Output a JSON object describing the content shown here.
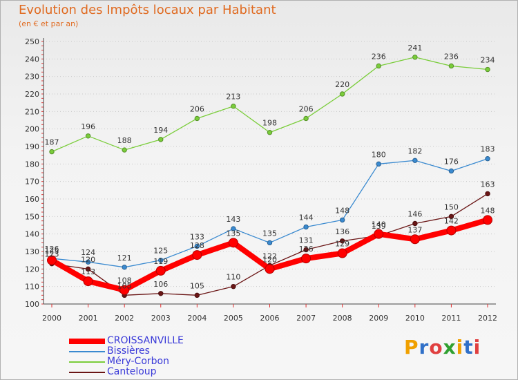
{
  "title": "Evolution des Impôts locaux par Habitant",
  "subtitle": "(en € et par an)",
  "logo": {
    "text": "Proxiti",
    "colors": [
      "#f0a000",
      "#3070c8",
      "#e04040",
      "#30a030"
    ]
  },
  "chart_data": {
    "type": "line",
    "title": "Evolution des Impôts locaux par Habitant",
    "subtitle": "(en € et par an)",
    "xlabel": "",
    "ylabel": "",
    "ylim": [
      100,
      250
    ],
    "yticks": [
      100,
      110,
      120,
      130,
      140,
      150,
      160,
      170,
      180,
      190,
      200,
      210,
      220,
      230,
      240,
      250
    ],
    "x": [
      "2000",
      "2001",
      "2002",
      "2003",
      "2004",
      "2005",
      "2006",
      "2007",
      "2008",
      "2009",
      "2010",
      "2011",
      "2012"
    ],
    "grid": "horizontal-dotted",
    "legend": "bottom-left",
    "series": [
      {
        "name": "CROISSANVILLE",
        "color": "#ff0000",
        "values": [
          125,
          113,
          108,
          119,
          128,
          135,
          120,
          126,
          129,
          140,
          137,
          142,
          148
        ]
      },
      {
        "name": "Bissières",
        "color": "#3a8ad0",
        "values": [
          126,
          124,
          121,
          125,
          133,
          143,
          135,
          144,
          148,
          180,
          182,
          176,
          183
        ]
      },
      {
        "name": "Méry-Corbon",
        "color": "#7acd3a",
        "values": [
          187,
          196,
          188,
          194,
          206,
          213,
          198,
          206,
          220,
          236,
          241,
          236,
          234
        ]
      },
      {
        "name": "Canteloup",
        "color": "#6a1515",
        "values": [
          123,
          120,
          105,
          106,
          105,
          110,
          122,
          131,
          136,
          139,
          146,
          150,
          163
        ]
      }
    ]
  }
}
